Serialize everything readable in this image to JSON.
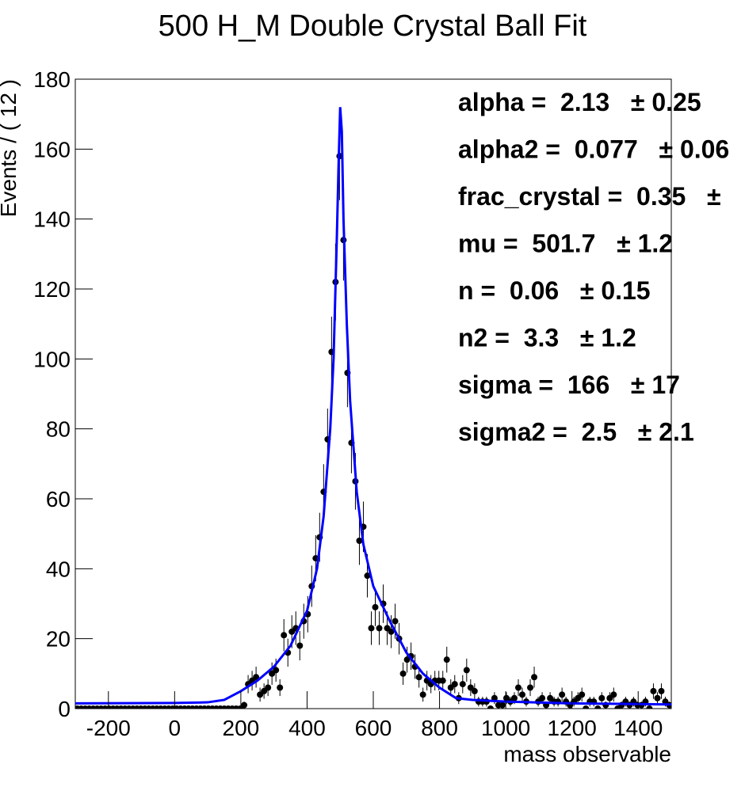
{
  "chart_data": {
    "type": "scatter",
    "title": "500 H_M Double Crystal Ball Fit",
    "x_label": "mass observable",
    "y_label": "Events / ( 12 )",
    "xlim": [
      -300,
      1500
    ],
    "ylim": [
      0,
      180
    ],
    "xticks": [
      -200,
      0,
      200,
      400,
      600,
      800,
      1000,
      1200,
      1400
    ],
    "yticks": [
      0,
      20,
      40,
      60,
      80,
      100,
      120,
      140,
      160,
      180
    ],
    "series": [
      {
        "type": "scatter",
        "color": "#000000",
        "x": [
          -294,
          -282,
          -270,
          -258,
          -246,
          -234,
          -222,
          -210,
          -198,
          -186,
          -174,
          -162,
          -150,
          -138,
          -126,
          -114,
          -102,
          -90,
          -78,
          -66,
          -54,
          -42,
          -30,
          -18,
          -6,
          6,
          18,
          30,
          42,
          54,
          66,
          78,
          90,
          102,
          114,
          126,
          138,
          150,
          162,
          174,
          186,
          198,
          210,
          222,
          234,
          246,
          258,
          270,
          282,
          294,
          306,
          318,
          330,
          342,
          354,
          366,
          378,
          390,
          402,
          414,
          426,
          438,
          450,
          462,
          474,
          486,
          498,
          510,
          522,
          534,
          546,
          558,
          570,
          582,
          594,
          606,
          618,
          630,
          642,
          654,
          666,
          678,
          690,
          702,
          714,
          726,
          738,
          750,
          762,
          774,
          786,
          798,
          810,
          822,
          834,
          846,
          858,
          870,
          882,
          894,
          906,
          918,
          930,
          942,
          954,
          966,
          978,
          990,
          1002,
          1014,
          1026,
          1038,
          1050,
          1062,
          1074,
          1086,
          1098,
          1110,
          1122,
          1134,
          1146,
          1158,
          1170,
          1182,
          1194,
          1206,
          1218,
          1230,
          1242,
          1254,
          1266,
          1278,
          1290,
          1302,
          1314,
          1326,
          1338,
          1350,
          1362,
          1374,
          1386,
          1398,
          1410,
          1422,
          1434,
          1446,
          1458,
          1470,
          1482,
          1494
        ],
        "values": [
          0,
          0,
          0,
          0,
          0,
          0,
          0,
          0,
          0,
          0,
          0,
          0,
          0,
          0,
          0,
          0,
          0,
          0,
          0,
          0,
          0,
          0,
          0,
          0,
          0,
          0,
          0,
          0,
          0,
          0,
          0,
          0,
          0,
          0,
          0,
          0,
          0,
          0,
          0,
          0,
          0,
          0,
          1,
          7,
          8,
          9,
          4,
          5,
          6,
          10,
          11,
          6,
          21,
          16,
          22,
          23,
          18,
          25,
          27,
          35,
          43,
          49,
          62,
          77,
          102,
          122,
          158,
          134,
          96,
          76,
          65,
          48,
          52,
          38,
          23,
          29,
          23,
          30,
          23,
          22,
          25,
          20,
          10,
          14,
          15,
          12,
          9,
          4,
          8,
          7,
          8,
          8,
          8,
          14,
          6,
          7,
          3,
          7,
          11,
          6,
          5,
          2,
          2,
          2,
          0,
          3,
          1,
          1,
          3,
          2,
          3,
          6,
          4,
          2,
          6,
          9,
          2,
          3,
          1,
          3,
          2,
          2,
          4,
          2,
          1,
          2,
          3,
          4,
          0,
          2,
          2,
          0,
          3,
          1,
          3,
          4,
          0,
          1,
          2,
          1,
          2,
          1,
          1,
          2,
          0,
          5,
          3,
          5,
          2,
          1
        ],
        "errors": [
          0,
          0,
          0,
          0,
          0,
          0,
          0,
          0,
          0,
          0,
          0,
          0,
          0,
          0,
          0,
          0,
          0,
          0,
          0,
          0,
          0,
          0,
          0,
          0,
          0,
          0,
          0,
          0,
          0,
          0,
          0,
          0,
          0,
          0,
          0,
          0,
          0,
          0,
          0,
          0,
          0,
          0,
          1,
          2.6,
          2.8,
          3,
          2,
          2.2,
          2.4,
          3.2,
          3.3,
          2.4,
          4.6,
          4,
          4.7,
          4.8,
          4.2,
          5,
          5.2,
          5.9,
          6.6,
          7,
          7.9,
          8.8,
          10.1,
          11,
          12.6,
          11.6,
          9.8,
          8.7,
          8.1,
          6.9,
          7.2,
          6.2,
          4.8,
          5.4,
          4.8,
          5.5,
          4.8,
          4.7,
          5,
          4.5,
          3.2,
          3.7,
          3.9,
          3.5,
          3,
          2,
          2.8,
          2.6,
          2.8,
          2.8,
          2.8,
          3.7,
          2.4,
          2.6,
          1.7,
          2.6,
          3.3,
          2.4,
          2.2,
          1.4,
          1.4,
          1.4,
          0,
          1.7,
          1,
          1,
          1.7,
          1.4,
          1.7,
          2.4,
          2,
          1.4,
          2.4,
          3,
          1.4,
          1.7,
          1,
          1.7,
          1.4,
          1.4,
          2,
          1.4,
          1,
          1.4,
          1.7,
          2,
          0,
          1.4,
          1.4,
          0,
          1.7,
          1,
          1.7,
          2,
          0,
          1,
          1.4,
          1,
          1.4,
          1,
          1,
          1.4,
          0,
          2.2,
          1.7,
          2.2,
          1.4,
          1
        ]
      },
      {
        "type": "line",
        "color": "#0000ff",
        "x": [
          -300,
          0,
          100,
          150,
          200,
          250,
          300,
          350,
          400,
          430,
          450,
          470,
          480,
          490,
          495,
          500,
          505,
          510,
          520,
          530,
          550,
          570,
          600,
          650,
          700,
          750,
          800,
          850,
          900,
          1000,
          1200,
          1500
        ],
        "values": [
          1.5,
          1.6,
          1.8,
          2.5,
          5,
          8,
          12,
          18,
          28,
          40,
          55,
          80,
          100,
          135,
          155,
          172,
          165,
          140,
          110,
          88,
          62,
          47,
          35,
          25,
          16,
          10,
          6,
          3,
          2.5,
          2,
          1.5,
          1.2
        ]
      }
    ],
    "annotations": [
      "alpha =  2.13   ± 0.25",
      "alpha2 =  0.077   ± 0.06",
      "frac_crystal =  0.35   ±",
      "mu =  501.7   ± 1.2",
      "n =  0.06   ± 0.15",
      "n2 =  3.3   ± 1.2",
      "sigma =  166   ± 17",
      "sigma2 =  2.5   ± 2.1"
    ]
  }
}
